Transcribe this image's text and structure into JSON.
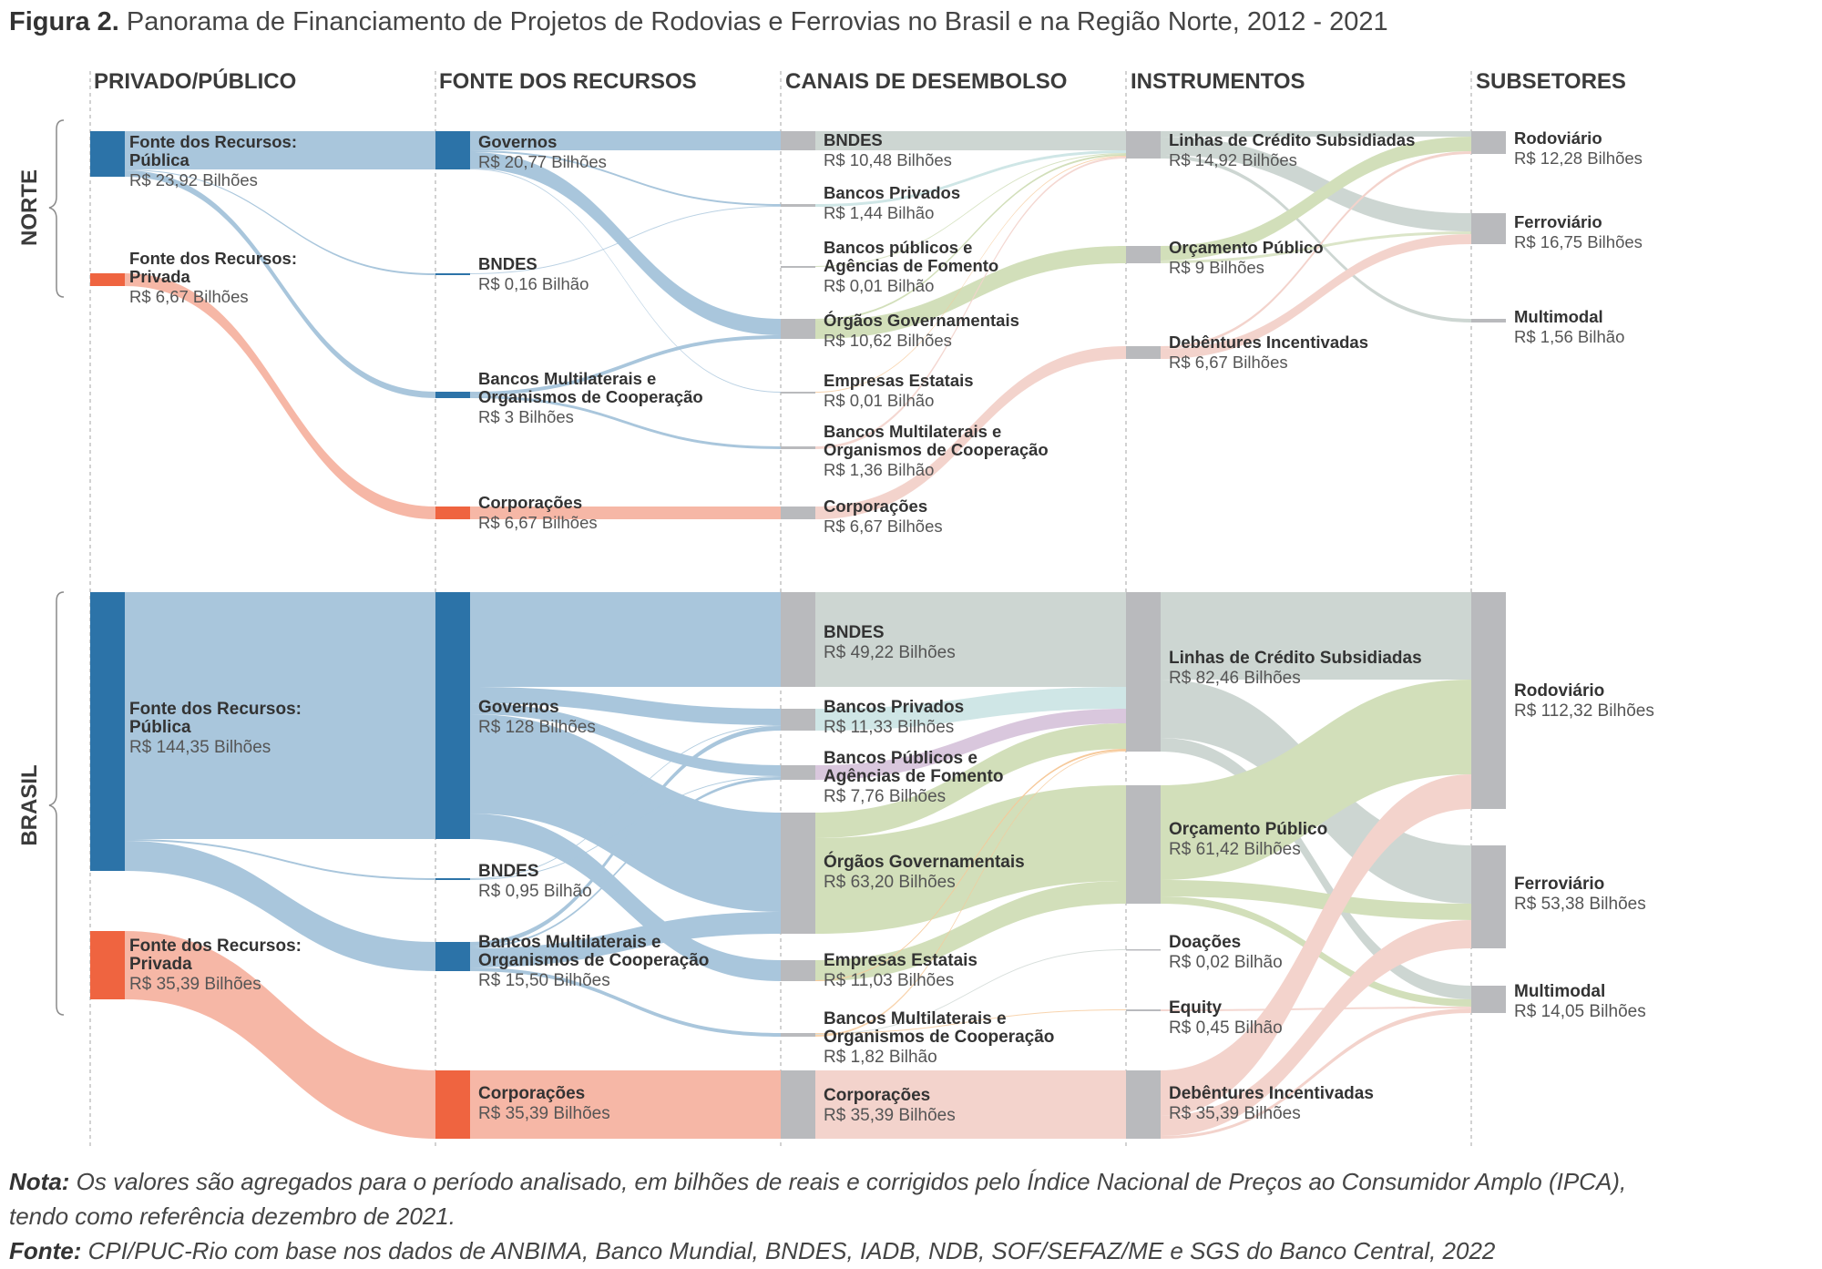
{
  "title": {
    "prefix": "Figura 2.",
    "text": "Panorama de Financiamento de Projetos de Rodovias e Ferrovias no Brasil e na Região Norte, 2012 - 2021"
  },
  "columns": [
    "PRIVADO/PÚBLICO",
    "FONTE DOS RECURSOS",
    "CANAIS DE DESEMBOLSO",
    "INSTRUMENTOS",
    "SUBSETORES"
  ],
  "groups": [
    "NORTE",
    "BRASIL"
  ],
  "colors": {
    "publico": "#2c73a8",
    "privado": "#ef6440",
    "gray_node": "#b9babd",
    "link_blue": "#a9c6dc",
    "link_red": "#f6b7a6",
    "link_green": "#d2dfba",
    "link_gray": "#cdd6d2",
    "link_lightred": "#f3d3cc",
    "link_cyan": "#cfe6e6",
    "link_purple": "#d9c7dd",
    "link_orange": "#f6c99a"
  },
  "norte": {
    "nodes": [
      {
        "id": "n_pub",
        "label": "Fonte dos Recursos: Pública",
        "value_text": "R$ 23,92 Bilhões",
        "value": 23.92
      },
      {
        "id": "n_priv",
        "label": "Fonte dos Recursos: Privada",
        "value_text": "R$ 6,67 Bilhões",
        "value": 6.67
      },
      {
        "id": "n_gov",
        "label": "Governos",
        "value_text": "R$ 20,77 Bilhões",
        "value": 20.77
      },
      {
        "id": "n_bndes_src",
        "label": "BNDES",
        "value_text": "R$ 0,16 Bilhão",
        "value": 0.16
      },
      {
        "id": "n_multi_src",
        "label": "Bancos Multilaterais e Organismos de Cooperação",
        "value_text": "R$ 3 Bilhões",
        "value": 3
      },
      {
        "id": "n_corp_src",
        "label": "Corporações",
        "value_text": "R$ 6,67 Bilhões",
        "value": 6.67
      },
      {
        "id": "n_bndes",
        "label": "BNDES",
        "value_text": "R$ 10,48 Bilhões",
        "value": 10.48
      },
      {
        "id": "n_bpriv",
        "label": "Bancos Privados",
        "value_text": "R$ 1,44 Bilhão",
        "value": 1.44
      },
      {
        "id": "n_bpub",
        "label": "Bancos públicos e Agências de Fomento",
        "value_text": "R$ 0,01 Bilhão",
        "value": 0.01
      },
      {
        "id": "n_org",
        "label": "Órgãos Governamentais",
        "value_text": "R$ 10,62 Bilhões",
        "value": 10.62
      },
      {
        "id": "n_est",
        "label": "Empresas Estatais",
        "value_text": "R$ 0,01 Bilhão",
        "value": 0.01
      },
      {
        "id": "n_multi",
        "label": "Bancos Multilaterais e Organismos de Cooperação",
        "value_text": "R$ 1,36 Bilhão",
        "value": 1.36
      },
      {
        "id": "n_corp",
        "label": "Corporações",
        "value_text": "R$ 6,67 Bilhões",
        "value": 6.67
      },
      {
        "id": "n_linhas",
        "label": "Linhas de Crédito Subsidiadas",
        "value_text": "R$ 14,92 Bilhões",
        "value": 14.92
      },
      {
        "id": "n_orc",
        "label": "Orçamento Público",
        "value_text": "R$ 9 Bilhões",
        "value": 9
      },
      {
        "id": "n_deb",
        "label": "Debêntures Incentivadas",
        "value_text": "R$ 6,67 Bilhões",
        "value": 6.67
      },
      {
        "id": "n_rod",
        "label": "Rodoviário",
        "value_text": "R$ 12,28 Bilhões",
        "value": 12.28
      },
      {
        "id": "n_fer",
        "label": "Ferroviário",
        "value_text": "R$ 16,75 Bilhões",
        "value": 16.75
      },
      {
        "id": "n_mm",
        "label": "Multimodal",
        "value_text": "R$ 1,56 Bilhão",
        "value": 1.56
      }
    ]
  },
  "brasil": {
    "nodes": [
      {
        "id": "b_pub",
        "label": "Fonte dos Recursos: Pública",
        "value_text": "R$ 144,35 Bilhões",
        "value": 144.35
      },
      {
        "id": "b_priv",
        "label": "Fonte dos Recursos: Privada",
        "value_text": "R$ 35,39 Bilhões",
        "value": 35.39
      },
      {
        "id": "b_gov",
        "label": "Governos",
        "value_text": "R$ 128 Bilhões",
        "value": 128
      },
      {
        "id": "b_bndes_src",
        "label": "BNDES",
        "value_text": "R$ 0,95 Bilhão",
        "value": 0.95
      },
      {
        "id": "b_multi_src",
        "label": "Bancos Multilaterais e Organismos de Cooperação",
        "value_text": "R$ 15,50 Bilhões",
        "value": 15.5
      },
      {
        "id": "b_corp_src",
        "label": "Corporações",
        "value_text": "R$ 35,39 Bilhões",
        "value": 35.39
      },
      {
        "id": "b_bndes",
        "label": "BNDES",
        "value_text": "R$ 49,22 Bilhões",
        "value": 49.22
      },
      {
        "id": "b_bpriv",
        "label": "Bancos Privados",
        "value_text": "R$ 11,33 Bilhões",
        "value": 11.33
      },
      {
        "id": "b_bpub",
        "label": "Bancos Públicos e Agências de Fomento",
        "value_text": "R$ 7,76 Bilhões",
        "value": 7.76
      },
      {
        "id": "b_org",
        "label": "Órgãos Governamentais",
        "value_text": "R$ 63,20 Bilhões",
        "value": 63.2
      },
      {
        "id": "b_est",
        "label": "Empresas Estatais",
        "value_text": "R$ 11,03 Bilhões",
        "value": 11.03
      },
      {
        "id": "b_multi",
        "label": "Bancos Multilaterais e Organismos de Cooperação",
        "value_text": "R$ 1,82 Bilhão",
        "value": 1.82
      },
      {
        "id": "b_corp",
        "label": "Corporações",
        "value_text": "R$ 35,39 Bilhões",
        "value": 35.39
      },
      {
        "id": "b_linhas",
        "label": "Linhas de Crédito Subsidiadas",
        "value_text": "R$ 82,46 Bilhões",
        "value": 82.46
      },
      {
        "id": "b_orc",
        "label": "Orçamento Público",
        "value_text": "R$ 61,42 Bilhões",
        "value": 61.42
      },
      {
        "id": "b_doa",
        "label": "Doações",
        "value_text": "R$ 0,02 Bilhão",
        "value": 0.02
      },
      {
        "id": "b_eq",
        "label": "Equity",
        "value_text": "R$ 0,45 Bilhão",
        "value": 0.45
      },
      {
        "id": "b_deb",
        "label": "Debêntures Incentivadas",
        "value_text": "R$ 35,39 Bilhões",
        "value": 35.39
      },
      {
        "id": "b_rod",
        "label": "Rodoviário",
        "value_text": "R$ 112,32 Bilhões",
        "value": 112.32
      },
      {
        "id": "b_fer",
        "label": "Ferroviário",
        "value_text": "R$ 53,38 Bilhões",
        "value": 53.38
      },
      {
        "id": "b_mm",
        "label": "Multimodal",
        "value_text": "R$ 14,05 Bilhões",
        "value": 14.05
      }
    ]
  },
  "notes": {
    "nota_label": "Nota:",
    "nota_line1": "Os valores são agregados para o período analisado, em bilhões de reais e corrigidos pelo Índice Nacional de Preços ao Consumidor Amplo (IPCA),",
    "nota_line2": "tendo como referência dezembro de 2021.",
    "fonte_label": "Fonte:",
    "fonte_text": "CPI/PUC-Rio com base nos dados de ANBIMA, Banco Mundial, BNDES, IADB, NDB, SOF/SEFAZ/ME e SGS do Banco Central, 2022"
  }
}
